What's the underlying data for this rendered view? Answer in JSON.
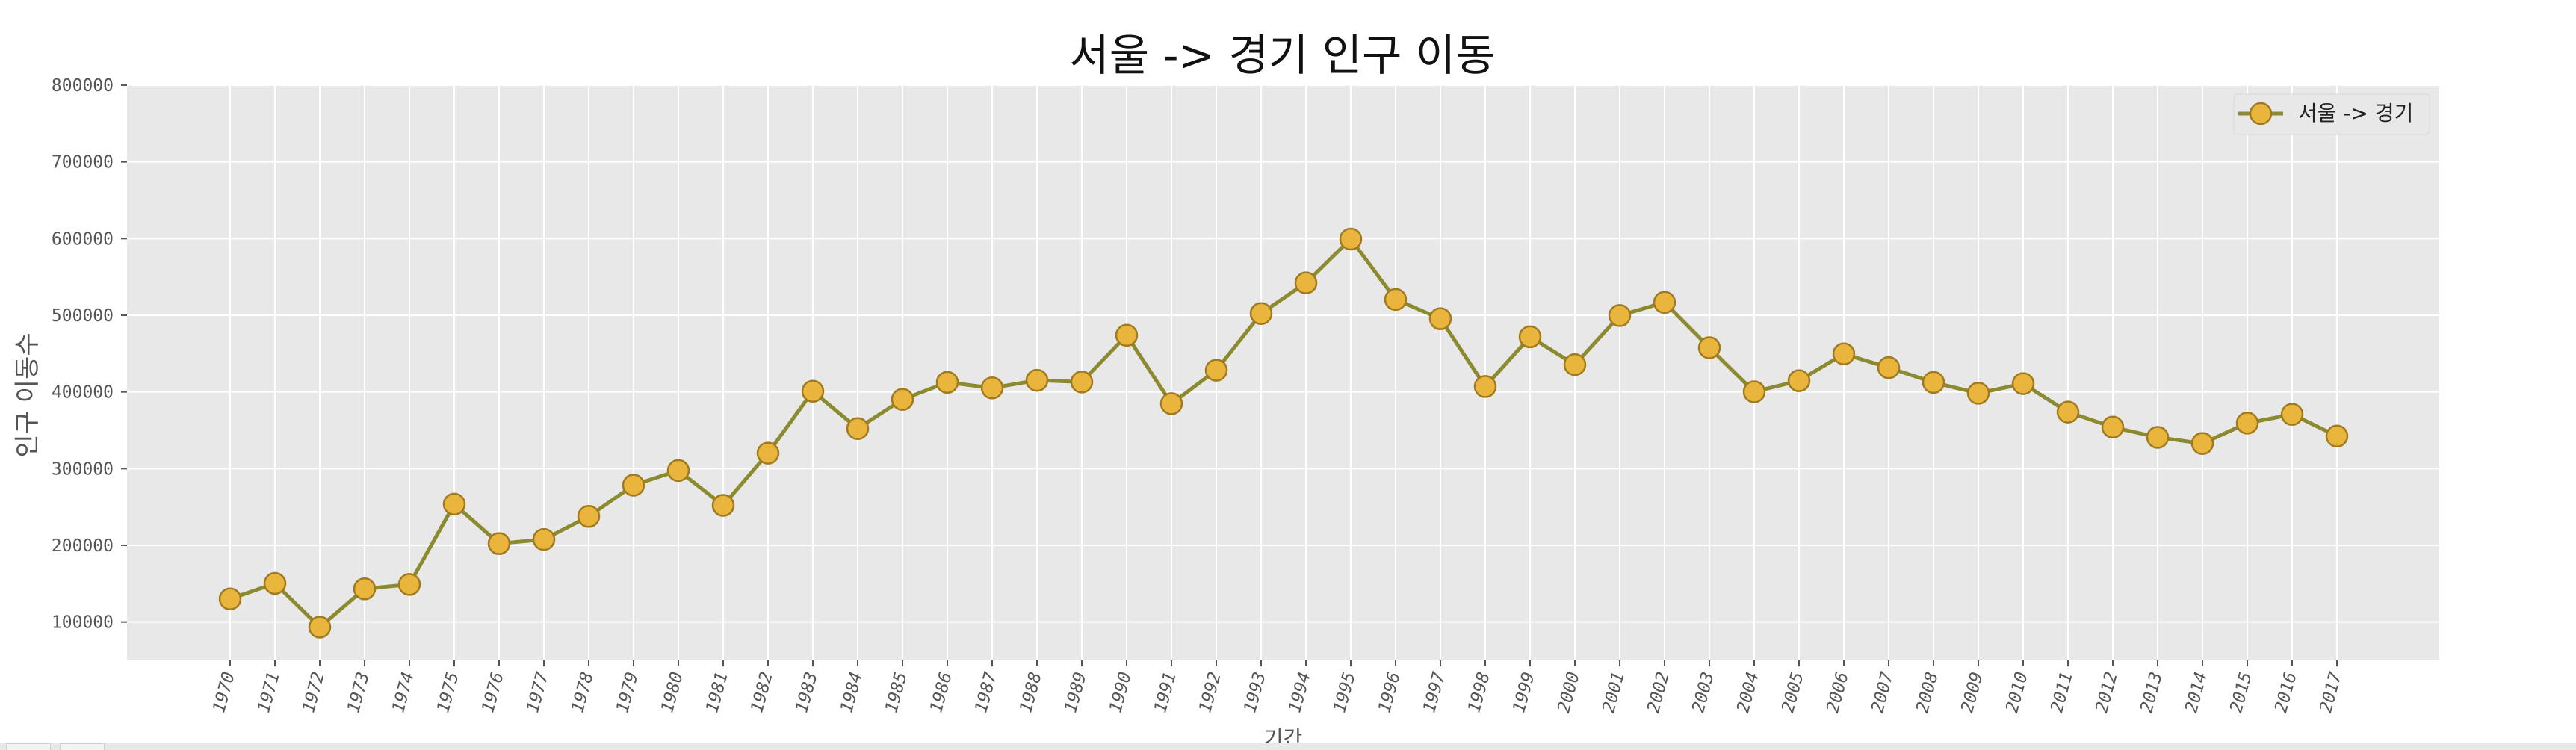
{
  "chart_data": {
    "type": "line",
    "title": "서울 -> 경기 인구 이동",
    "xlabel": "기간",
    "ylabel": "인구 이동수",
    "categories": [
      "1970",
      "1971",
      "1972",
      "1973",
      "1974",
      "1975",
      "1976",
      "1977",
      "1978",
      "1979",
      "1980",
      "1981",
      "1982",
      "1983",
      "1984",
      "1985",
      "1986",
      "1987",
      "1988",
      "1989",
      "1990",
      "1991",
      "1992",
      "1993",
      "1994",
      "1995",
      "1996",
      "1997",
      "1998",
      "1999",
      "2000",
      "2001",
      "2002",
      "2003",
      "2004",
      "2005",
      "2006",
      "2007",
      "2008",
      "2009",
      "2010",
      "2011",
      "2012",
      "2013",
      "2014",
      "2015",
      "2016",
      "2017"
    ],
    "series": [
      {
        "name": "서울 -> 경기",
        "values": [
          130149,
          150313,
          93333,
          143234,
          149045,
          253705,
          202276,
          207722,
          237684,
          278411,
          297539,
          252073,
          320174,
          400875,
          352238,
          390265,
          412505,
          405220,
          415174,
          412933,
          473889,
          384714,
          428344,
          502223,
          542204,
          599411,
          520566,
          495454,
          407050,
          471841,
          435573,
          499575,
          516765,
          457656,
          400206,
          414621,
          449632,
          431637,
          412408,
          398282,
          410735,
          373771,
          354135,
          340801,
          332785,
          359337,
          370760,
          342433
        ]
      }
    ],
    "yticks": [
      "100000",
      "200000",
      "300000",
      "400000",
      "500000",
      "600000",
      "700000",
      "800000"
    ],
    "ylim": [
      50000,
      800000
    ],
    "grid": true,
    "legend_position": "top-right",
    "colors": {
      "line": "#8c8a2e",
      "marker_fill": "#eab53c",
      "marker_edge": "#a07a1e",
      "plot_bg": "#e8e8e8",
      "grid": "#ffffff",
      "tick_text": "#555555",
      "title_text": "#111111"
    }
  }
}
